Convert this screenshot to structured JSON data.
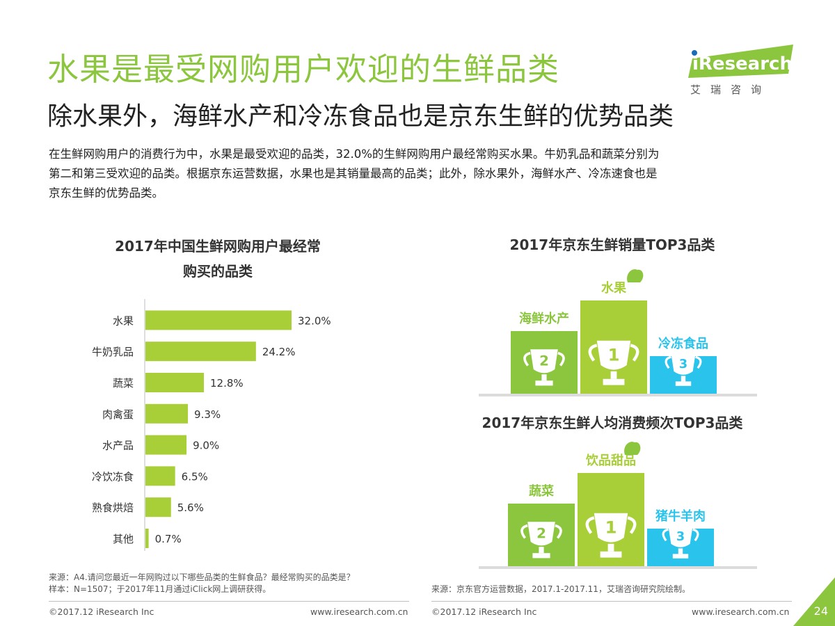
{
  "header": {
    "title": "水果是最受网购用户欢迎的生鲜品类",
    "subtitle": "除水果外，海鲜水产和冷冻食品也是京东生鲜的优势品类",
    "intro_lines": [
      "在生鲜网购用户的消费行为中，水果是最受欢迎的品类，32.0%的生鲜网购用户最经常购买水果。牛奶乳品和蔬菜分别为",
      "第二和第三受欢迎的品类。根据京东运营数据，水果也是其销量最高的品类；此外，除水果外，海鲜水产、冷冻速食也是",
      "京东生鲜的优势品类。"
    ]
  },
  "logo": {
    "brand": "iResearch",
    "tagline": "艾瑞咨询",
    "color": "#8cc63f"
  },
  "left_chart": {
    "title_lines": [
      "2017年中国生鲜网购用户最经常",
      "购买的品类"
    ]
  },
  "right_top": {
    "title": "2017年京东生鲜销量TOP3品类"
  },
  "right_bottom": {
    "title": "2017年京东生鲜人均消费频次TOP3品类"
  },
  "chart_data": [
    {
      "type": "bar",
      "orientation": "horizontal",
      "title": "2017年中国生鲜网购用户最经常购买的品类",
      "categories": [
        "水果",
        "牛奶乳品",
        "蔬菜",
        "肉禽蛋",
        "水产品",
        "冷饮冻食",
        "熟食烘焙",
        "其他"
      ],
      "values": [
        32.0,
        24.2,
        12.8,
        9.3,
        9.0,
        6.5,
        5.6,
        0.7
      ],
      "value_labels": [
        "32.0%",
        "24.2%",
        "12.8%",
        "9.3%",
        "9.0%",
        "6.5%",
        "5.6%",
        "0.7%"
      ],
      "unit": "%",
      "color": "#a8cf38"
    },
    {
      "type": "bar",
      "title": "2017年京东生鲜销量TOP3品类",
      "podium": [
        {
          "rank": 2,
          "rank_label": "2",
          "label": "海鲜水产",
          "color": "#8cc63f"
        },
        {
          "rank": 1,
          "rank_label": "1",
          "label": "水果",
          "color": "#a8cf38"
        },
        {
          "rank": 3,
          "rank_label": "3",
          "label": "冷冻食品",
          "color": "#29c3ec"
        }
      ]
    },
    {
      "type": "bar",
      "title": "2017年京东生鲜人均消费频次TOP3品类",
      "podium": [
        {
          "rank": 2,
          "rank_label": "2",
          "label": "蔬菜",
          "color": "#8cc63f"
        },
        {
          "rank": 1,
          "rank_label": "1",
          "label": "饮品甜品",
          "color": "#a8cf38"
        },
        {
          "rank": 3,
          "rank_label": "3",
          "label": "猪牛羊肉",
          "color": "#29c3ec"
        }
      ]
    }
  ],
  "footer": {
    "left_source_lines": [
      "来源：A4.请问您最近一年网购过以下哪些品类的生鲜食品？最经常购买的品类是？",
      "样本：N=1507；于2017年11月通过iClick网上调研获得。"
    ],
    "right_source": "来源：京东官方运营数据，2017.1-2017.11，艾瑞咨询研究院绘制。",
    "copyright_left": "©2017.12 iResearch Inc",
    "url_left": "www.iresearch.com.cn",
    "copyright_right": "©2017.12 iResearch Inc",
    "url_right": "www.iresearch.com.cn",
    "page_number": "24"
  }
}
